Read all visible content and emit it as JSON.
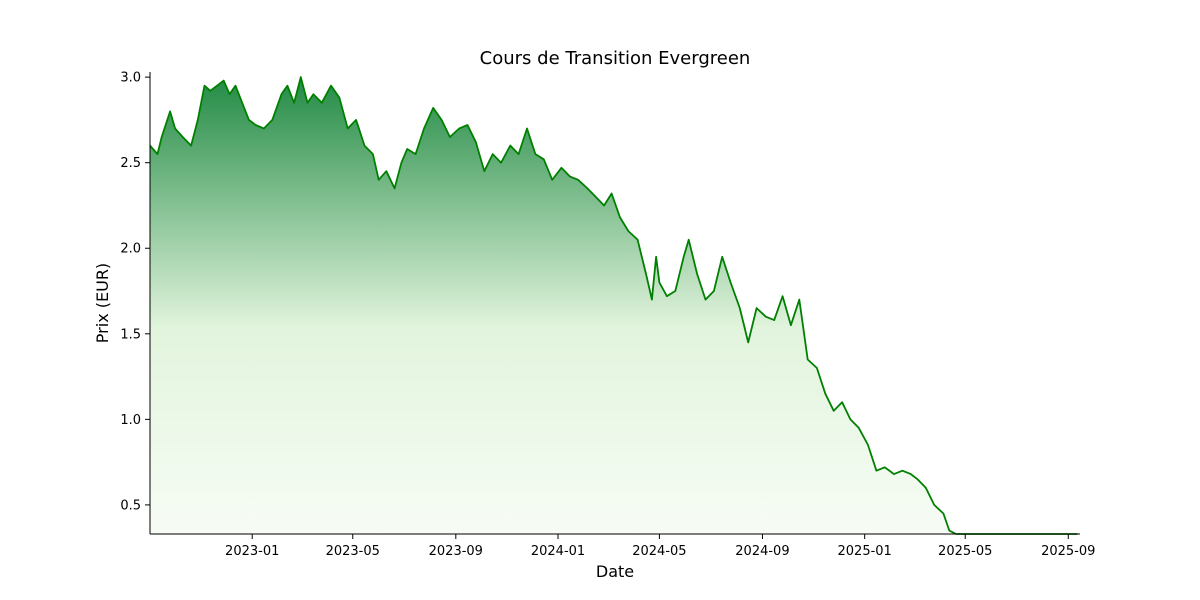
{
  "chart_data": {
    "type": "area",
    "title": "Cours de Transition Evergreen",
    "xlabel": "Date",
    "ylabel": "Prix (EUR)",
    "x_range": [
      "2022-09-01",
      "2025-09-15"
    ],
    "ylim": [
      0.33,
      3.03
    ],
    "yticks": [
      0.5,
      1.0,
      1.5,
      2.0,
      2.5,
      3.0
    ],
    "ytick_labels": [
      "0.5",
      "1.0",
      "1.5",
      "2.0",
      "2.5",
      "3.0"
    ],
    "xticks": [
      "2023-01-01",
      "2023-05-01",
      "2023-09-01",
      "2024-01-01",
      "2024-05-01",
      "2024-09-01",
      "2025-01-01",
      "2025-05-01",
      "2025-09-01"
    ],
    "xtick_labels": [
      "2023-01",
      "2023-05",
      "2023-09",
      "2024-01",
      "2024-05",
      "2024-09",
      "2025-01",
      "2025-05",
      "2025-09"
    ],
    "grid": false,
    "line_color": "#008000",
    "fill_top_color": "#238b45",
    "fill_bottom_color": "#f7fcf5",
    "series": [
      {
        "x": [
          "2022-09-01",
          "2022-09-10",
          "2022-09-15",
          "2022-09-25",
          "2022-10-01",
          "2022-10-10",
          "2022-10-20",
          "2022-10-28",
          "2022-11-05",
          "2022-11-12",
          "2022-11-20",
          "2022-11-28",
          "2022-12-05",
          "2022-12-12",
          "2022-12-20",
          "2022-12-28",
          "2023-01-05",
          "2023-01-15",
          "2023-01-25",
          "2023-02-05",
          "2023-02-12",
          "2023-02-20",
          "2023-02-28",
          "2023-03-08",
          "2023-03-15",
          "2023-03-25",
          "2023-04-05",
          "2023-04-15",
          "2023-04-25",
          "2023-05-05",
          "2023-05-15",
          "2023-05-25",
          "2023-06-01",
          "2023-06-10",
          "2023-06-20",
          "2023-06-28",
          "2023-07-05",
          "2023-07-15",
          "2023-07-25",
          "2023-08-05",
          "2023-08-15",
          "2023-08-25",
          "2023-09-05",
          "2023-09-15",
          "2023-09-25",
          "2023-10-05",
          "2023-10-15",
          "2023-10-25",
          "2023-11-05",
          "2023-11-15",
          "2023-11-25",
          "2023-12-05",
          "2023-12-15",
          "2023-12-25",
          "2024-01-05",
          "2024-01-15",
          "2024-01-25",
          "2024-02-05",
          "2024-02-15",
          "2024-02-25",
          "2024-03-05",
          "2024-03-15",
          "2024-03-25",
          "2024-04-05",
          "2024-04-15",
          "2024-04-22",
          "2024-04-27",
          "2024-05-01",
          "2024-05-10",
          "2024-05-20",
          "2024-05-30",
          "2024-06-05",
          "2024-06-15",
          "2024-06-25",
          "2024-07-05",
          "2024-07-15",
          "2024-07-25",
          "2024-08-05",
          "2024-08-15",
          "2024-08-25",
          "2024-09-05",
          "2024-09-15",
          "2024-09-25",
          "2024-10-05",
          "2024-10-15",
          "2024-10-25",
          "2024-11-05",
          "2024-11-15",
          "2024-11-25",
          "2024-12-05",
          "2024-12-15",
          "2024-12-25",
          "2025-01-05",
          "2025-01-15",
          "2025-01-25",
          "2025-02-05",
          "2025-02-15",
          "2025-02-25",
          "2025-03-05",
          "2025-03-15",
          "2025-03-25",
          "2025-04-05",
          "2025-04-12",
          "2025-04-20",
          "2025-05-15",
          "2025-06-15",
          "2025-07-15",
          "2025-08-15",
          "2025-09-12"
        ],
        "y": [
          2.6,
          2.55,
          2.65,
          2.8,
          2.7,
          2.65,
          2.6,
          2.75,
          2.95,
          2.92,
          2.95,
          2.98,
          2.9,
          2.95,
          2.85,
          2.75,
          2.72,
          2.7,
          2.75,
          2.9,
          2.95,
          2.85,
          3.0,
          2.85,
          2.9,
          2.85,
          2.95,
          2.88,
          2.7,
          2.75,
          2.6,
          2.55,
          2.4,
          2.45,
          2.35,
          2.5,
          2.58,
          2.55,
          2.7,
          2.82,
          2.75,
          2.65,
          2.7,
          2.72,
          2.62,
          2.45,
          2.55,
          2.5,
          2.6,
          2.55,
          2.7,
          2.55,
          2.52,
          2.4,
          2.47,
          2.42,
          2.4,
          2.35,
          2.3,
          2.25,
          2.32,
          2.18,
          2.1,
          2.05,
          1.85,
          1.7,
          1.95,
          1.8,
          1.72,
          1.75,
          1.95,
          2.05,
          1.85,
          1.7,
          1.75,
          1.95,
          1.8,
          1.65,
          1.45,
          1.65,
          1.6,
          1.58,
          1.72,
          1.55,
          1.7,
          1.35,
          1.3,
          1.15,
          1.05,
          1.1,
          1.0,
          0.95,
          0.85,
          0.7,
          0.72,
          0.68,
          0.7,
          0.68,
          0.65,
          0.6,
          0.5,
          0.45,
          0.35,
          0.33,
          0.33,
          0.33,
          0.33,
          0.33,
          0.33
        ]
      }
    ]
  }
}
